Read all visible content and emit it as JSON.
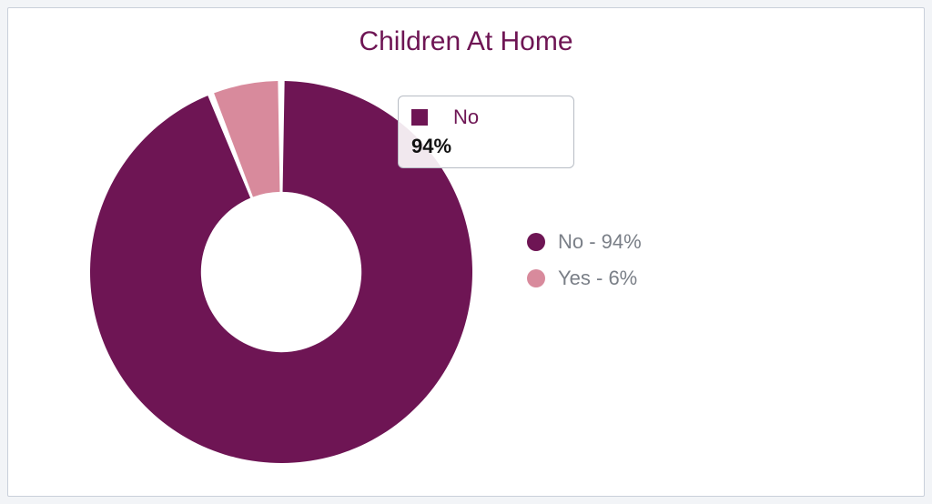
{
  "chart": {
    "type": "donut",
    "title": "Children At Home",
    "title_color": "#6e1554",
    "title_fontsize": 30,
    "background_color": "#ffffff",
    "page_background": "#f2f4f7",
    "card_border_color": "#c9d0da",
    "outer_radius": 210,
    "inner_radius_ratio": 0.42,
    "gap_degrees": 2,
    "start_angle_deg": -90,
    "series": [
      {
        "key": "no",
        "label": "No",
        "value": 94,
        "color": "#6e1554"
      },
      {
        "key": "yes",
        "label": "Yes",
        "value": 6,
        "color": "#d88a9c"
      }
    ],
    "legend": {
      "position": "right",
      "text_color": "#7a7f87",
      "fontsize": 22,
      "items": [
        {
          "swatch": "#6e1554",
          "text": "No - 94%"
        },
        {
          "swatch": "#d88a9c",
          "text": "Yes - 6%"
        }
      ]
    },
    "tooltip": {
      "visible": true,
      "swatch_color": "#6e1554",
      "label": "No",
      "label_color": "#6e1554",
      "value": "94%",
      "border_color": "#b7bcc4",
      "fontsize": 22
    }
  }
}
